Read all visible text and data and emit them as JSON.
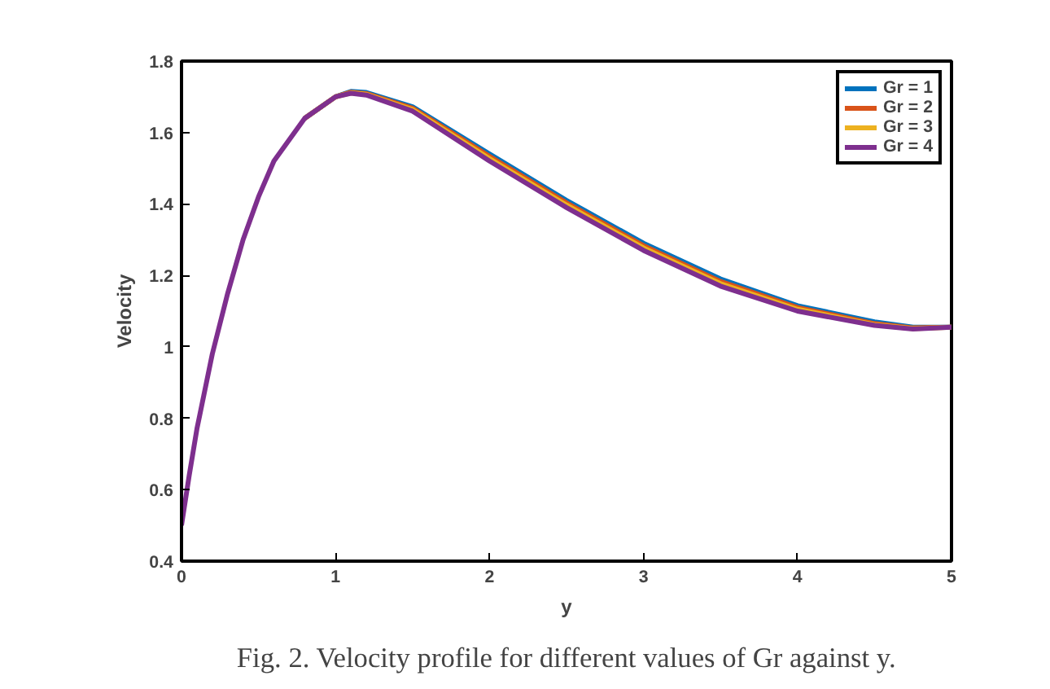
{
  "chart_data": {
    "type": "line",
    "xlabel": "y",
    "ylabel": "Velocity",
    "x": [
      0,
      0.05,
      0.1,
      0.2,
      0.3,
      0.4,
      0.5,
      0.6,
      0.8,
      1.0,
      1.1,
      1.2,
      1.5,
      2.0,
      2.5,
      3.0,
      3.5,
      4.0,
      4.5,
      4.75,
      5.0
    ],
    "series": [
      {
        "name": "Gr = 1",
        "color": "#0072bd",
        "values": [
          null,
          null,
          null,
          null,
          null,
          null,
          null,
          null,
          1.64,
          1.7,
          1.715,
          1.712,
          1.672,
          1.54,
          1.41,
          1.29,
          1.19,
          1.115,
          1.07,
          1.055,
          1.055
        ]
      },
      {
        "name": "Gr = 2",
        "color": "#d95319",
        "values": [
          null,
          null,
          null,
          null,
          null,
          null,
          null,
          null,
          1.64,
          1.7,
          1.713,
          1.709,
          1.668,
          1.533,
          1.403,
          1.283,
          1.183,
          1.11,
          1.065,
          1.053,
          1.055
        ]
      },
      {
        "name": "Gr = 3",
        "color": "#edb120",
        "values": [
          null,
          null,
          null,
          null,
          null,
          null,
          null,
          null,
          1.64,
          1.7,
          1.711,
          1.707,
          1.664,
          1.527,
          1.397,
          1.277,
          1.177,
          1.105,
          1.062,
          1.051,
          1.055
        ]
      },
      {
        "name": "Gr = 4",
        "color": "#7e2f8e",
        "values": [
          0.5,
          0.64,
          0.77,
          0.98,
          1.15,
          1.3,
          1.42,
          1.52,
          1.64,
          1.7,
          1.71,
          1.705,
          1.66,
          1.52,
          1.39,
          1.27,
          1.17,
          1.1,
          1.06,
          1.05,
          1.055
        ]
      }
    ],
    "xlim": [
      0,
      5
    ],
    "ylim": [
      0.4,
      1.8
    ],
    "xticks": [
      0,
      1,
      2,
      3,
      4,
      5
    ],
    "yticks": [
      0.4,
      0.6,
      0.8,
      1,
      1.2,
      1.4,
      1.6,
      1.8
    ],
    "grid": false,
    "legend": "top right",
    "line_style": "solid",
    "annotations": [
      "Fig. 2. Velocity profile for different values of Gr against y."
    ]
  }
}
